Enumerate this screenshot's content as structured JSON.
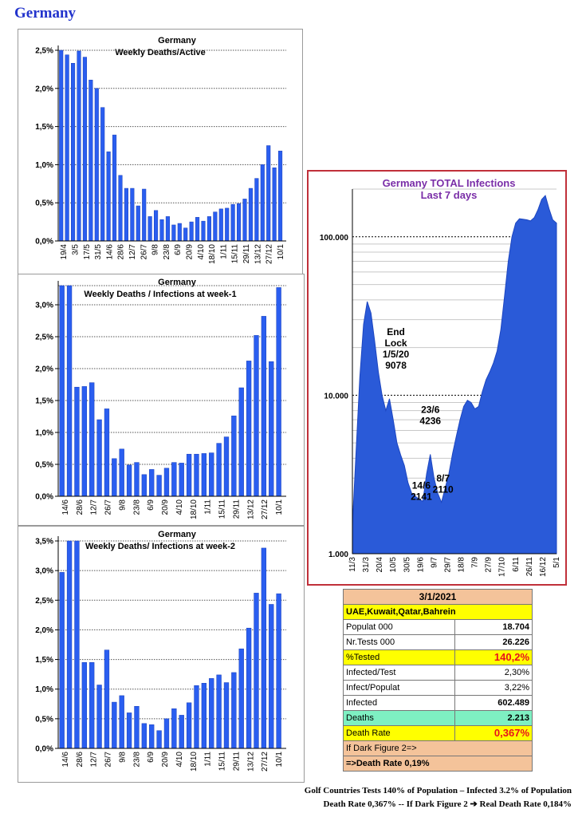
{
  "page_title": "Germany",
  "chart_data": [
    {
      "type": "bar",
      "title": "Germany",
      "subtitle": "Weekly Deaths/Active",
      "ylim": [
        0,
        2.5
      ],
      "ytick_labels": [
        "0,0%",
        "0,5%",
        "1,0%",
        "1,5%",
        "2,0%",
        "2,5%"
      ],
      "xtick_labels": [
        "19/4",
        "3/5",
        "17/5",
        "31/5",
        "14/6",
        "28/6",
        "12/7",
        "26/7",
        "9/8",
        "23/8",
        "6/9",
        "20/9",
        "4/10",
        "18/10",
        "1/11",
        "15/11",
        "29/11",
        "13/12",
        "27/12",
        "10/1"
      ],
      "values": [
        2.51,
        2.44,
        2.33,
        2.49,
        2.41,
        2.11,
        2.0,
        1.75,
        1.17,
        1.39,
        0.86,
        0.69,
        0.69,
        0.46,
        0.68,
        0.32,
        0.4,
        0.28,
        0.32,
        0.21,
        0.23,
        0.17,
        0.25,
        0.31,
        0.26,
        0.32,
        0.38,
        0.42,
        0.43,
        0.48,
        0.49,
        0.55,
        0.69,
        0.82,
        1.0,
        1.25,
        0.96,
        1.18
      ],
      "grid": true
    },
    {
      "type": "bar",
      "title": "Germany",
      "subtitle": "Weekly Deaths / Infections at week-1",
      "ylim": [
        0,
        3.3
      ],
      "ytick_labels": [
        "0,0%",
        "0,5%",
        "1,0%",
        "1,5%",
        "2,0%",
        "2,5%",
        "3,0%"
      ],
      "xtick_labels": [
        "14/6",
        "28/6",
        "12/7",
        "26/7",
        "9/8",
        "23/8",
        "6/9",
        "20/9",
        "4/10",
        "18/10",
        "1/11",
        "15/11",
        "29/11",
        "13/12",
        "27/12",
        "10/1"
      ],
      "values": [
        3.3,
        3.3,
        1.71,
        1.72,
        1.78,
        1.2,
        1.37,
        0.59,
        0.74,
        0.49,
        0.53,
        0.34,
        0.42,
        0.33,
        0.44,
        0.53,
        0.52,
        0.66,
        0.66,
        0.67,
        0.68,
        0.83,
        0.93,
        1.26,
        1.7,
        2.12,
        2.52,
        2.82,
        2.11,
        3.27
      ],
      "grid": true
    },
    {
      "type": "bar",
      "title": "Germany",
      "subtitle": "Weekly  Deaths/ Infections at week-2",
      "ylim": [
        0,
        3.5
      ],
      "ytick_labels": [
        "0,0%",
        "0,5%",
        "1,0%",
        "1,5%",
        "2,0%",
        "2,5%",
        "3,0%",
        "3,5%"
      ],
      "xtick_labels": [
        "14/6",
        "28/6",
        "12/7",
        "26/7",
        "9/8",
        "23/8",
        "6/9",
        "20/9",
        "4/10",
        "18/10",
        "1/11",
        "15/11",
        "29/11",
        "13/12",
        "27/12",
        "10/1"
      ],
      "values": [
        2.97,
        3.5,
        3.5,
        1.45,
        1.45,
        1.07,
        1.66,
        0.78,
        0.89,
        0.6,
        0.71,
        0.42,
        0.4,
        0.3,
        0.5,
        0.67,
        0.56,
        0.77,
        1.06,
        1.1,
        1.18,
        1.24,
        1.11,
        1.28,
        1.68,
        2.03,
        2.62,
        3.38,
        2.43,
        2.61
      ],
      "grid": true
    },
    {
      "type": "area",
      "title": "Germany   TOTAL Infections",
      "subtitle": "Last 7 days",
      "yscale": "log",
      "ylim": [
        1000,
        200000
      ],
      "ytick_labels": [
        "1.000",
        "10.000",
        "100.000"
      ],
      "xtick_labels": [
        "11/3",
        "31/3",
        "20/4",
        "10/5",
        "30/5",
        "19/6",
        "9/7",
        "29/7",
        "18/8",
        "7/9",
        "27/9",
        "17/10",
        "6/11",
        "26/11",
        "16/12",
        "5/1"
      ],
      "points": [
        [
          "11/3",
          1500
        ],
        [
          "16/3",
          4500
        ],
        [
          "21/3",
          13000
        ],
        [
          "26/3",
          28000
        ],
        [
          "31/3",
          39000
        ],
        [
          "5/4",
          33000
        ],
        [
          "10/4",
          22000
        ],
        [
          "15/4",
          14000
        ],
        [
          "20/4",
          10000
        ],
        [
          "25/4",
          8000
        ],
        [
          "30/4",
          9500
        ],
        [
          "5/5",
          7000
        ],
        [
          "10/5",
          5000
        ],
        [
          "15/5",
          4200
        ],
        [
          "20/5",
          3600
        ],
        [
          "25/5",
          2800
        ],
        [
          "30/5",
          2400
        ],
        [
          "4/6",
          2300
        ],
        [
          "9/6",
          2200
        ],
        [
          "14/6",
          2141
        ],
        [
          "19/6",
          3200
        ],
        [
          "23/6",
          4236
        ],
        [
          "27/6",
          3000
        ],
        [
          "2/7",
          2400
        ],
        [
          "8/7",
          2110
        ],
        [
          "13/7",
          2600
        ],
        [
          "19/7",
          3200
        ],
        [
          "25/7",
          4300
        ],
        [
          "31/7",
          5500
        ],
        [
          "6/8",
          7000
        ],
        [
          "12/8",
          8500
        ],
        [
          "18/8",
          9300
        ],
        [
          "24/8",
          9000
        ],
        [
          "30/8",
          8200
        ],
        [
          "5/9",
          8500
        ],
        [
          "11/9",
          10500
        ],
        [
          "17/9",
          12500
        ],
        [
          "23/9",
          14000
        ],
        [
          "29/9",
          16000
        ],
        [
          "5/10",
          19000
        ],
        [
          "11/10",
          26000
        ],
        [
          "17/10",
          42000
        ],
        [
          "23/10",
          70000
        ],
        [
          "29/10",
          100000
        ],
        [
          "4/11",
          122000
        ],
        [
          "10/11",
          130000
        ],
        [
          "16/11",
          129000
        ],
        [
          "22/11",
          128000
        ],
        [
          "28/11",
          126000
        ],
        [
          "4/12",
          132000
        ],
        [
          "10/12",
          148000
        ],
        [
          "16/12",
          172000
        ],
        [
          "20/12",
          182000
        ],
        [
          "25/12",
          150000
        ],
        [
          "30/12",
          128000
        ],
        [
          "5/1",
          122000
        ]
      ],
      "annotations": [
        {
          "lines": [
            "End",
            "Lock",
            "1/5/20",
            "9078"
          ]
        },
        {
          "lines": [
            "23/6",
            "4236"
          ]
        },
        {
          "lines": [
            "14/6",
            "2141"
          ]
        },
        {
          "lines": [
            "8/7",
            "2110"
          ]
        }
      ],
      "grid": true
    }
  ],
  "stats_table": {
    "date": "3/1/2021",
    "countries": "UAE,Kuwait,Qatar,Bahrein",
    "populat_label": "Populat   000",
    "populat_value": "18.704",
    "tests_label": "Nr.Tests   000",
    "tests_value": "26.226",
    "tested_label": "%Tested",
    "tested_value": "140,2%",
    "inf_test_label": "Infected/Test",
    "inf_test_value": "2,30%",
    "inf_pop_label": "Infect/Populat",
    "inf_pop_value": "3,22%",
    "infected_label": "Infected",
    "infected_value": "602.489",
    "deaths_label": "Deaths",
    "deaths_value": "2.213",
    "death_rate_label": "Death Rate",
    "death_rate_value": "0,367%",
    "dark_line1": "If Dark Figure 2=>",
    "dark_line2": "=>Death Rate  0,19%"
  },
  "footnote": {
    "line1": "Golf Countries   Tests 140% of Population – Infected 3.2% of Population",
    "line2": "Death Rate 0,367% -- If Dark Figure 2 ➔ Real Death Rate 0,184%"
  },
  "colors": {
    "bar_fill": "#2a5ef0",
    "area_fill": "#2a5ad8",
    "title_purple": "#7a2ea8",
    "frame_red": "#c0303a",
    "red_value": "#e8101c"
  }
}
